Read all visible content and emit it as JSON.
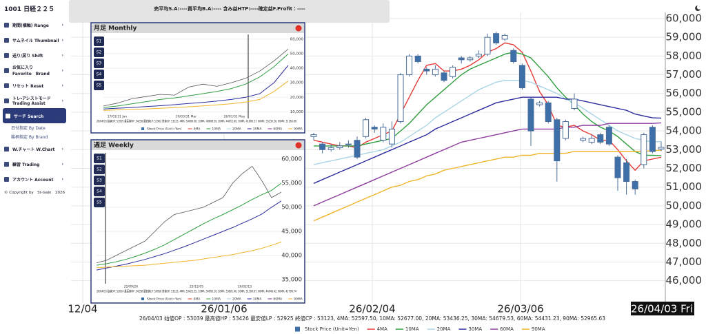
{
  "app": {
    "symbol": "1001 日経２２５",
    "summary": "売平均S.A:----買平均B.A:---- 含み益HTP:----確定益F.Profit：----",
    "menu": [
      [
        "期間(横軸) Range"
      ],
      [
        "サムネイル Thumbnail"
      ],
      [
        "送り/戻り Shift"
      ],
      [
        "お気に入り",
        "Favorite　Brand"
      ],
      [
        "リセット Reset"
      ],
      [
        "トレ・アシストモード",
        "Trading Assist"
      ],
      [
        "サーチ Search"
      ]
    ],
    "submenu": [
      "日付指定 By Date",
      "銘柄指定 By Brand"
    ],
    "menu2": [
      "W.チャート W.Chart",
      "練習 Trading",
      "アカウント Account"
    ],
    "copyright": "© Copyright by",
    "brand": "St-Gain",
    "year": "2026"
  },
  "chart_data": [
    {
      "type": "candlestick",
      "price_name": "Stock Price (Unit=Yen)",
      "open": [
        53700,
        53300,
        53000,
        53100,
        53300,
        53500,
        53700,
        54200,
        53500,
        53300,
        54500,
        57000,
        58000,
        57300,
        57000,
        57100,
        56900,
        57900,
        57800,
        58000,
        58100,
        59200,
        58900,
        58300,
        57500,
        55700,
        55400,
        55500,
        54600,
        53600,
        55200,
        53500,
        53400,
        53800,
        54200,
        52600,
        52300,
        51300,
        52200,
        54200,
        53039
      ],
      "high": [
        53900,
        53400,
        53300,
        53400,
        53500,
        53700,
        54700,
        54300,
        54400,
        54500,
        57100,
        58100,
        58100,
        57400,
        57500,
        57200,
        57500,
        58000,
        58000,
        58300,
        59200,
        59300,
        59200,
        58400,
        57600,
        55800,
        55600,
        55600,
        54700,
        54600,
        56000,
        53700,
        53800,
        53900,
        54300,
        52700,
        52500,
        51400,
        53900,
        54300,
        53426
      ],
      "low": [
        53500,
        52800,
        52900,
        53000,
        53100,
        52500,
        53600,
        53900,
        53400,
        53100,
        54400,
        56900,
        57600,
        57000,
        56900,
        56600,
        56800,
        57600,
        57700,
        57900,
        58000,
        58600,
        58800,
        57600,
        56200,
        53200,
        55300,
        54400,
        51300,
        53500,
        55100,
        53400,
        53300,
        53300,
        53200,
        50800,
        50600,
        50600,
        52000,
        52800,
        52925
      ],
      "close": [
        53800,
        53000,
        53100,
        53200,
        53300,
        52600,
        54600,
        54100,
        54200,
        54100,
        57000,
        58000,
        57700,
        57200,
        57300,
        56700,
        57400,
        57800,
        57900,
        58100,
        59000,
        58700,
        59100,
        57700,
        56300,
        54000,
        55500,
        54500,
        52400,
        54500,
        55700,
        53600,
        53600,
        53400,
        53300,
        51500,
        51300,
        50900,
        53800,
        52900,
        53123
      ],
      "series": [
        {
          "name": "4MA",
          "color": "#e53935",
          "values": [
            53500,
            53400,
            53300,
            53200,
            53200,
            53100,
            53400,
            53600,
            53800,
            54000,
            54900,
            55800,
            56700,
            57500,
            57600,
            57200,
            57200,
            57300,
            57500,
            57800,
            58200,
            58400,
            58700,
            58600,
            58200,
            57200,
            56100,
            55400,
            54300,
            54200,
            54300,
            54000,
            53800,
            53500,
            53500,
            53000,
            52400,
            51900,
            52400,
            52500,
            52597.5
          ]
        },
        {
          "name": "10MA",
          "color": "#2e9e3e",
          "values": [
            53200,
            53200,
            53200,
            53200,
            53200,
            53200,
            53300,
            53400,
            53500,
            53600,
            54000,
            54400,
            54900,
            55400,
            55800,
            56200,
            56600,
            57000,
            57300,
            57500,
            57700,
            57900,
            58100,
            58200,
            58100,
            57900,
            57400,
            56900,
            56300,
            55800,
            55400,
            54900,
            54500,
            54200,
            54000,
            53700,
            53300,
            52900,
            52700,
            52700,
            52677
          ]
        },
        {
          "name": "20MA",
          "color": "#a8d4e6",
          "values": [
            52200,
            52300,
            52400,
            52500,
            52600,
            52700,
            52800,
            52900,
            53000,
            53200,
            53400,
            53700,
            54000,
            54300,
            54700,
            55000,
            55300,
            55600,
            55900,
            56200,
            56400,
            56600,
            56700,
            56700,
            56700,
            56600,
            56400,
            56200,
            56000,
            55700,
            55500,
            55200,
            54900,
            54600,
            54300,
            54000,
            53800,
            53600,
            53500,
            53400,
            53436.25
          ]
        },
        {
          "name": "30MA",
          "color": "#2b2b9e",
          "values": [
            51200,
            51400,
            51600,
            51800,
            52000,
            52200,
            52400,
            52600,
            52800,
            53000,
            53200,
            53400,
            53600,
            53800,
            54100,
            54300,
            54500,
            54700,
            54900,
            55100,
            55300,
            55500,
            55600,
            55700,
            55800,
            55800,
            55800,
            55800,
            55800,
            55700,
            55700,
            55600,
            55500,
            55400,
            55300,
            55200,
            55100,
            54900,
            54800,
            54700,
            54679.53
          ]
        },
        {
          "name": "60MA",
          "color": "#8e3a9e",
          "values": [
            50000,
            50200,
            50400,
            50600,
            50800,
            51000,
            51200,
            51400,
            51600,
            51800,
            52000,
            52200,
            52400,
            52600,
            52800,
            53000,
            53200,
            53400,
            53500,
            53600,
            53700,
            53800,
            53900,
            54000,
            54100,
            54100,
            54100,
            54100,
            54100,
            54200,
            54200,
            54300,
            54300,
            54300,
            54400,
            54400,
            54400,
            54400,
            54400,
            54400,
            54431.23
          ]
        },
        {
          "name": "90MA",
          "color": "#f0b429",
          "values": [
            49200,
            49400,
            49600,
            49800,
            50000,
            50200,
            50400,
            50600,
            50800,
            51000,
            51100,
            51300,
            51400,
            51600,
            51700,
            51900,
            52000,
            52100,
            52200,
            52300,
            52400,
            52500,
            52600,
            52600,
            52700,
            52700,
            52800,
            52800,
            52800,
            52800,
            52900,
            52900,
            52900,
            52900,
            52900,
            52900,
            52900,
            52900,
            52900,
            52950,
            52965.63
          ]
        }
      ],
      "ylim": [
        44810,
        60330
      ],
      "yticks": [
        {
          "value": 46000,
          "label": "46,000"
        },
        {
          "value": 47000,
          "label": "47,000"
        },
        {
          "value": 48000,
          "label": "48,000"
        },
        {
          "value": 49000,
          "label": "49,000"
        },
        {
          "value": 50000,
          "label": "50,000"
        },
        {
          "value": 51000,
          "label": "51,000"
        },
        {
          "value": 52000,
          "label": "52,000"
        },
        {
          "value": 53000,
          "label": "53,000"
        },
        {
          "value": 54000,
          "label": "54,000"
        },
        {
          "value": 55000,
          "label": "55,000"
        },
        {
          "value": 56000,
          "label": "56,000"
        },
        {
          "value": 57000,
          "label": "57,000"
        },
        {
          "value": 58000,
          "label": "58,000"
        },
        {
          "value": 59000,
          "label": "59,000"
        },
        {
          "value": 60000,
          "label": "60,000"
        }
      ],
      "x_labels": [
        "12/04",
        "26/01/06",
        "26/02/04",
        "26/03/06",
        "26/04/03 Fri"
      ],
      "info": "26/04/03 始値OP : 53039 最高値HP : 53426 最安値LP : 52925 終値CP : 53123, 4MA: 52597.50, 10MA: 52677.00, 20MA: 53436.25, 30MA: 54679.53, 60MA: 54431.23, 90MA: 52965.63"
    },
    {
      "type": "line",
      "title": "月足 Monthly",
      "buttons": [
        "S1",
        "S2",
        "S3",
        "S4",
        "S5"
      ],
      "series": [
        {
          "name": "Stock Price (Unit=Yen)",
          "color": "#555555",
          "values": [
            14000,
            16000,
            19000,
            20500,
            22000,
            21500,
            27000,
            29000,
            27500,
            30000,
            33000,
            38000,
            45000,
            53123
          ]
        },
        {
          "name": "10MA",
          "color": "#2e9e3e",
          "values": [
            13000,
            14000,
            15500,
            17000,
            18500,
            19500,
            21000,
            22500,
            24000,
            26000,
            29000,
            34000,
            41000,
            49808.5
          ]
        },
        {
          "name": "30MA",
          "color": "#2b2b9e",
          "values": [
            12000,
            12500,
            13000,
            13600,
            14200,
            14900,
            15700,
            16500,
            17400,
            18500,
            20000,
            22500,
            30000,
            41896.57
          ]
        },
        {
          "name": "90MA",
          "color": "#f0b429",
          "values": [
            11000,
            11300,
            11600,
            12000,
            12400,
            12900,
            13500,
            14100,
            14800,
            15600,
            16700,
            18500,
            24000,
            31166.89
          ]
        }
      ],
      "legend": [
        "4MA",
        "10MA",
        "20MA",
        "30MA",
        "60MA",
        "90MA"
      ],
      "ylim": [
        5450,
        63200
      ],
      "yticks": [
        {
          "value": 10000,
          "label": "10,000"
        },
        {
          "value": 20000,
          "label": "20,000"
        },
        {
          "value": 30000,
          "label": "30,000"
        },
        {
          "value": 40000,
          "label": "40,000"
        },
        {
          "value": 50000,
          "label": "50,000"
        },
        {
          "value": 60000,
          "label": "60,000"
        }
      ],
      "x_labels": [
        "17/01/31 Jan",
        "20/03/31 Mar",
        "26/01/31 May"
      ],
      "info": "26/04/03 始値OP: 51959 最高値HP: 54258 最安値LP: 51902 終値CP: 53123, 4MA: 54090.00, 10MA: 49808.50, 20MA: 44051.60, 30MA: 41896.57, 60MA: 35236.30, 90MA: 31166.89"
    },
    {
      "type": "line",
      "title": "週足 Weekly",
      "buttons": [
        "S1",
        "S2",
        "S3",
        "S4",
        "S5"
      ],
      "series": [
        {
          "name": "Stock Price (Unit=Yen)",
          "color": "#555555",
          "values": [
            38500,
            39000,
            40000,
            41000,
            42000,
            43000,
            45000,
            47000,
            48500,
            49000,
            49500,
            50000,
            51000,
            52000,
            55000,
            57000,
            58500,
            55500,
            52000,
            53123
          ]
        },
        {
          "name": "10MA",
          "color": "#2e9e3e",
          "values": [
            38000,
            38300,
            38700,
            39200,
            39800,
            40500,
            41300,
            42200,
            43300,
            44400,
            45500,
            46600,
            47600,
            48500,
            49500,
            50500,
            51600,
            52600,
            53500,
            54993.1
          ]
        },
        {
          "name": "30MA",
          "color": "#2b2b9e",
          "values": [
            37000,
            37400,
            37800,
            38200,
            38700,
            39200,
            39800,
            40400,
            41100,
            41800,
            42600,
            43400,
            44200,
            45000,
            45800,
            46700,
            47600,
            48600,
            50000,
            51300.07
          ]
        },
        {
          "name": "90MA",
          "color": "#f0b429",
          "values": [
            37500,
            37600,
            37700,
            37800,
            37900,
            38000,
            38200,
            38400,
            38600,
            38800,
            39000,
            39300,
            39600,
            39900,
            40200,
            40600,
            41000,
            41500,
            42100,
            42798.74
          ]
        }
      ],
      "legend": [
        "4MA",
        "10MA",
        "20MA",
        "30MA",
        "60MA",
        "90MA"
      ],
      "ylim": [
        34160,
        61260
      ],
      "yticks": [
        {
          "value": 35000,
          "label": "35,000"
        },
        {
          "value": 40000,
          "label": "40,000"
        },
        {
          "value": 45000,
          "label": "45,000"
        },
        {
          "value": 50000,
          "label": "50,000"
        },
        {
          "value": 55000,
          "label": "55,000"
        },
        {
          "value": 60000,
          "label": "60,000"
        }
      ],
      "x_labels": [
        "25/09/26",
        "25/12/05",
        "26/02/13"
      ],
      "info": "26/04/03 始値OP: 52054 最高値HP: 54258 最安値LP: 50958 終値CP: 53123, 4MA: 53421.25, 10MA: 54993.10, 20MA: 53801.40, 30MA: 51300.07, 60MA: 44940.42, 90MA: 42798.74"
    }
  ]
}
